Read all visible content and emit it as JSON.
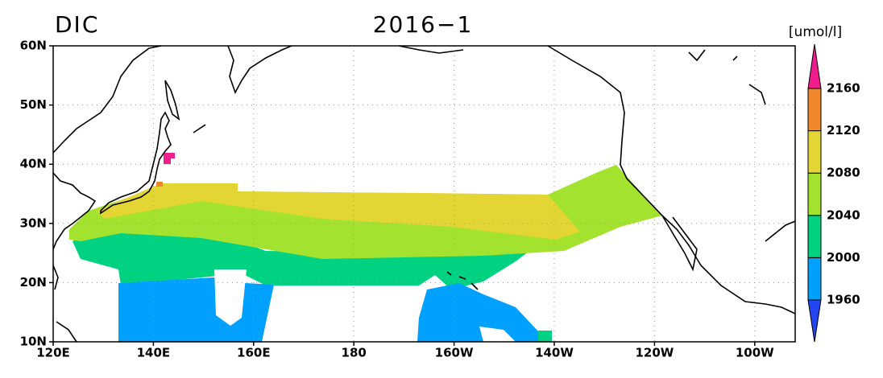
{
  "map": {
    "variable": "DIC",
    "period": "2016−1",
    "unit": "[umol/l]",
    "lat_labels": [
      "60N",
      "50N",
      "40N",
      "30N",
      "20N",
      "10N"
    ],
    "lon_labels": [
      "120E",
      "140E",
      "160E",
      "180",
      "160W",
      "140W",
      "120W",
      "100W"
    ],
    "colorbar": {
      "levels": [
        1960,
        2000,
        2040,
        2080,
        2120,
        2160
      ],
      "colors": [
        "#2346f0",
        "#00a0ff",
        "#00d282",
        "#a3e22e",
        "#e3d634",
        "#f0872d",
        "#f01e8c"
      ]
    }
  }
}
